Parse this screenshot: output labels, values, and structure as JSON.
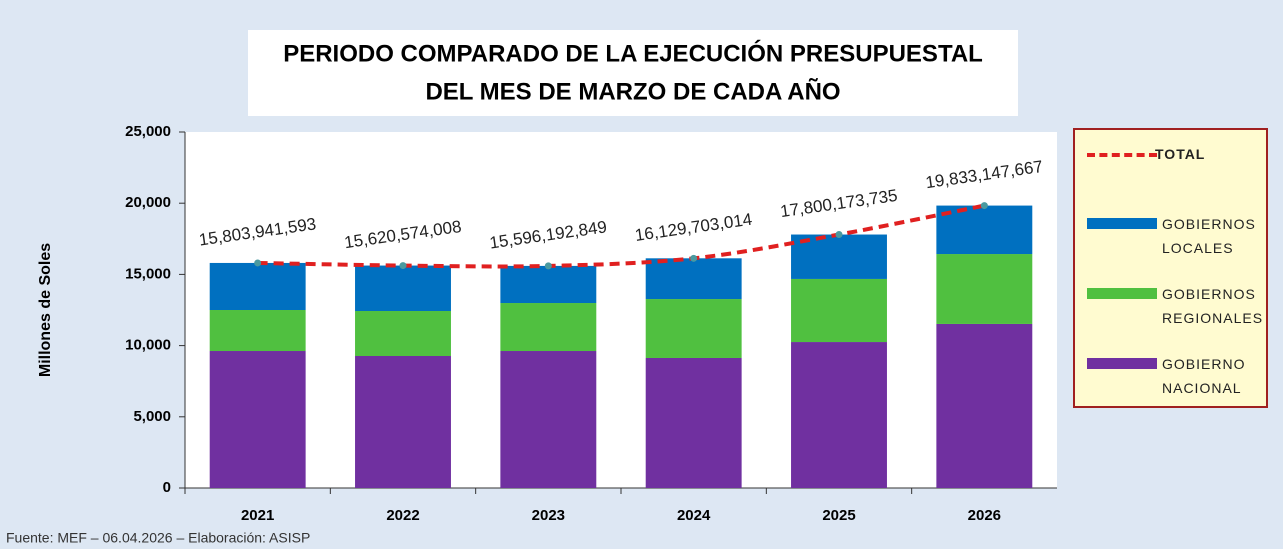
{
  "chart_data": {
    "type": "stacked_bar_line",
    "title": [
      "PERIODO COMPARADO DE LA EJECUCIÓN PRESUPUESTAL",
      "DEL MES DE MARZO DE CADA AÑO"
    ],
    "y_axis_label": "Millones de Soles",
    "source": "Fuente:  MEF  – 06.04.2026 – Elaboración: ASISP",
    "categories": [
      "2021",
      "2022",
      "2023",
      "2024",
      "2025",
      "2026"
    ],
    "ylim": [
      0,
      25000
    ],
    "yticks": [
      0,
      {
        "value": 5000,
        "label": "5,000"
      },
      {
        "value": 10000,
        "label": "10,000"
      },
      {
        "value": 15000,
        "label": "15,000"
      },
      {
        "value": 20000,
        "label": "20,000"
      },
      {
        "value": 25000,
        "label": "25,000"
      }
    ],
    "legend": "right",
    "series": [
      {
        "name": "GOBIERNO NACIONAL",
        "color": "#7030a0",
        "values": [
          9620,
          9270,
          9620,
          9130,
          10250,
          11520
        ]
      },
      {
        "name": "GOBIERNOS REGIONALES",
        "color": "#50c040",
        "values": [
          2880,
          3160,
          3370,
          4140,
          4430,
          4910
        ]
      },
      {
        "name": "GOBIERNOS LOCALES",
        "color": "#0070c0",
        "values": [
          3304,
          3191,
          2606,
          2860,
          3120,
          3403
        ]
      },
      {
        "name": "TOTAL",
        "color": "#e02020",
        "line": true,
        "values": [
          15803.941593,
          15620.574008,
          15596.192849,
          16129.703014,
          17800.173735,
          19833.147667
        ],
        "value_labels": [
          "15,803,941,593",
          "15,620,574,008",
          "15,596,192,849",
          "16,129,703,014",
          "17,800,173,735",
          "19,833,147,667"
        ]
      }
    ]
  }
}
